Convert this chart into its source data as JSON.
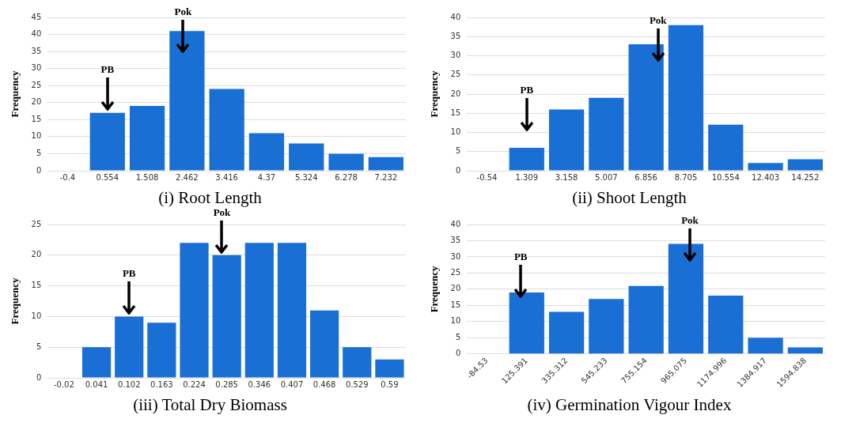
{
  "chart_data": [
    {
      "type": "bar",
      "title": "(i) Root Length",
      "ylabel": "Frequency",
      "categories": [
        "-0.4",
        "0.554",
        "1.508",
        "2.462",
        "3.416",
        "4.37",
        "5.324",
        "6.278",
        "7.232"
      ],
      "values": [
        0,
        17,
        19,
        41,
        24,
        11,
        8,
        5,
        4
      ],
      "color": "#1a6fd4",
      "ylim": [
        0,
        45
      ],
      "yticks": [
        0,
        5,
        10,
        15,
        20,
        25,
        30,
        35,
        40,
        45
      ],
      "grid": "y",
      "annotations": [
        "PB",
        "Pok"
      ]
    },
    {
      "type": "bar",
      "title": "(ii) Shoot Length",
      "ylabel": "Frequency",
      "categories": [
        "-0.54",
        "1.309",
        "3.158",
        "5.007",
        "6.856",
        "8.705",
        "10.554",
        "12.403",
        "14.252"
      ],
      "values": [
        0,
        6,
        16,
        19,
        33,
        38,
        12,
        2,
        3
      ],
      "color": "#1a6fd4",
      "ylim": [
        0,
        40
      ],
      "yticks": [
        0,
        5,
        10,
        15,
        20,
        25,
        30,
        35,
        40
      ],
      "grid": "y",
      "annotations": [
        "PB",
        "Pok"
      ]
    },
    {
      "type": "bar",
      "title": "(iii) Total Dry Biomass",
      "ylabel": "Frequency",
      "categories": [
        "-0.02",
        "0.041",
        "0.102",
        "0.163",
        "0.224",
        "0.285",
        "0.346",
        "0.407",
        "0.468",
        "0.529",
        "0.59"
      ],
      "values": [
        0,
        5,
        10,
        9,
        22,
        20,
        22,
        22,
        11,
        5,
        3
      ],
      "color": "#1a6fd4",
      "ylim": [
        0,
        25
      ],
      "yticks": [
        0,
        5,
        10,
        15,
        20,
        25
      ],
      "grid": "y",
      "annotations": [
        {
          "text": "PB",
          "x": "0.102",
          "y": 10
        },
        {
          "text": "Pok",
          "x": "0.285",
          "y": 20
        }
      ]
    },
    {
      "type": "bar",
      "title": "(iv) Germination Vigour Index",
      "ylabel": "Frequency",
      "categories": [
        "-84.53",
        "125.391",
        "335.312",
        "545.233",
        "755.154",
        "965.075",
        "1174.996",
        "1384.917",
        "1594.838"
      ],
      "values": [
        0,
        19,
        13,
        17,
        21,
        34,
        18,
        5,
        2
      ],
      "color": "#1a6fd4",
      "ylim": [
        0,
        40
      ],
      "yticks": [
        0,
        5,
        10,
        15,
        20,
        25,
        30,
        35,
        40
      ],
      "grid": "y",
      "annotations": [
        "PB",
        "Pok"
      ]
    }
  ]
}
